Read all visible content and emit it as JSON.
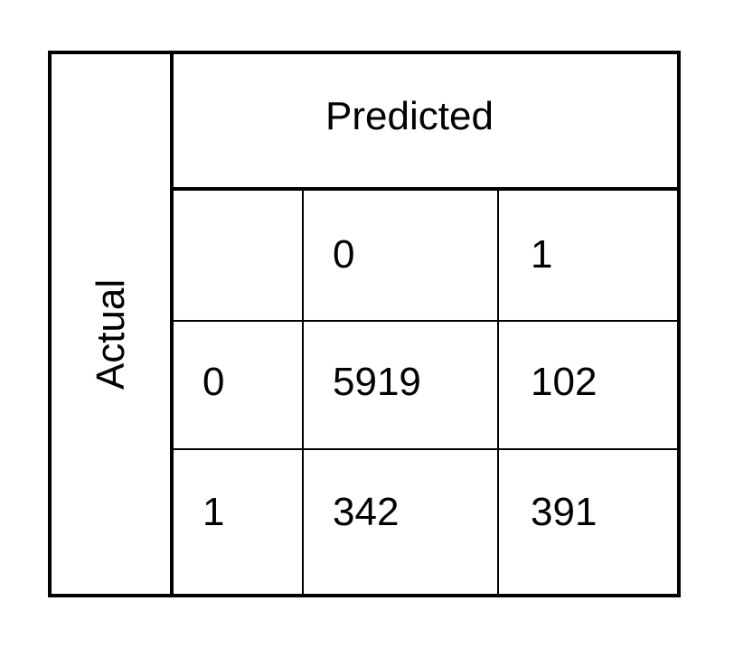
{
  "chart_data": {
    "type": "table",
    "title": "",
    "column_header": "Predicted",
    "row_header": "Actual",
    "columns": [
      "0",
      "1"
    ],
    "rows": [
      "0",
      "1"
    ],
    "values": [
      [
        5919,
        102
      ],
      [
        342,
        391
      ]
    ]
  }
}
